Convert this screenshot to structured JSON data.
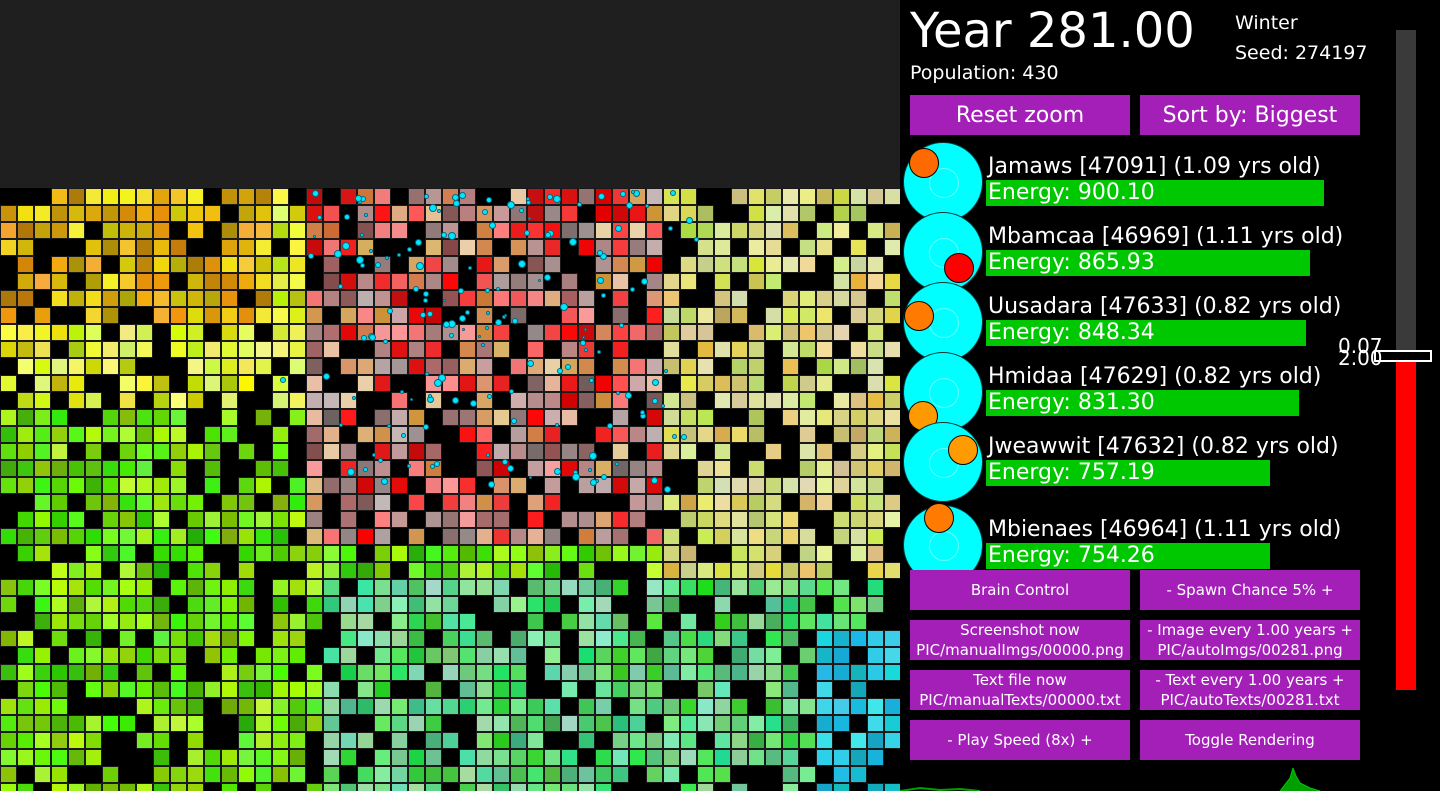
{
  "header": {
    "year": "Year 281.00",
    "season": "Winter",
    "seed": "Seed: 274197",
    "population": "Population: 430"
  },
  "controls": {
    "reset_zoom": "Reset zoom",
    "sort_by": "Sort by: Biggest"
  },
  "creatures": [
    {
      "name": "Jamaws [47091] (1.09 yrs old)",
      "energy": "Energy: 900.10",
      "energy_fraction": 0.94,
      "mouth_color": "#ff6a00"
    },
    {
      "name": "Mbamcaa [46969] (1.11 yrs old)",
      "energy": "Energy: 865.93",
      "energy_fraction": 0.9,
      "mouth_color": "#ff0000"
    },
    {
      "name": "Uusadara [47633] (0.82 yrs old)",
      "energy": "Energy: 848.34",
      "energy_fraction": 0.89,
      "mouth_color": "#ff7a00"
    },
    {
      "name": "Hmidaa [47629] (0.82 yrs old)",
      "energy": "Energy: 831.30",
      "energy_fraction": 0.87,
      "mouth_color": "#ff9900"
    },
    {
      "name": "Jweawwit [47632] (0.82 yrs old)",
      "energy": "Energy: 757.19",
      "energy_fraction": 0.79,
      "mouth_color": "#ff9a00"
    },
    {
      "name": "Mbienaes [46964] (1.11 yrs old)",
      "energy": "Energy: 754.26",
      "energy_fraction": 0.79,
      "mouth_color": "#ff7a00"
    }
  ],
  "buttons": {
    "brain_control": "Brain Control",
    "spawn_chance": "-   Spawn Chance 5%   +",
    "screenshot_now": "Screenshot now",
    "screenshot_path": "PIC/manualImgs/00000.png",
    "image_every": "-   Image every 1.00 years   +",
    "image_path": "PIC/autoImgs/00281.png",
    "text_file_now": "Text file now",
    "text_file_path": "PIC/manualTexts/00000.txt",
    "text_every": "-   Text every 1.00 years   +",
    "text_path": "PIC/autoTexts/00281.txt",
    "play_speed": "-     Play Speed (8x)     +",
    "toggle_rendering": "Toggle Rendering"
  },
  "temperature_slider": {
    "label_top": "0.07",
    "label_bottom": "2.00",
    "fill_fraction": 0.5
  },
  "colors": {
    "button": "#a31fb8",
    "energy_bar": "#00c800",
    "creature": "#00ffff",
    "slider_fill": "#ff0000"
  }
}
